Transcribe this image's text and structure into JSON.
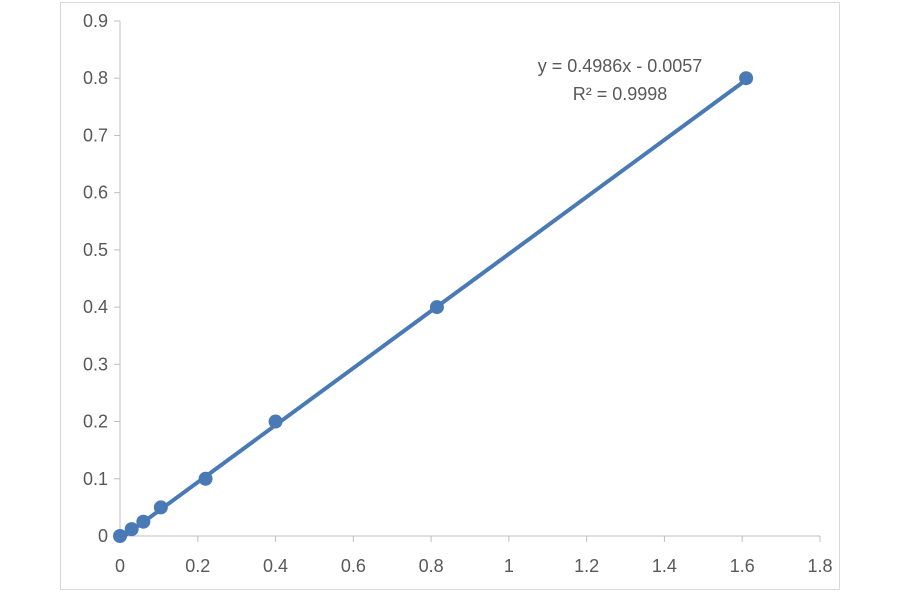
{
  "chart_data": {
    "type": "scatter",
    "series": [
      {
        "x": [
          0,
          0.03,
          0.06,
          0.105,
          0.22,
          0.4,
          0.815,
          1.61
        ],
        "y": [
          0,
          0.012,
          0.025,
          0.05,
          0.1,
          0.2,
          0.4,
          0.8
        ]
      }
    ],
    "trendline": {
      "type": "linear",
      "slope": 0.4986,
      "intercept": -0.0057,
      "x_range": [
        0,
        1.61
      ],
      "equation_label": "y = 0.4986x - 0.0057",
      "r2_label": "R² = 0.9998"
    },
    "xlim": [
      0,
      1.8
    ],
    "ylim": [
      0,
      0.9
    ],
    "x_ticks": [
      "0",
      "0.2",
      "0.4",
      "0.6",
      "0.8",
      "1",
      "1.2",
      "1.4",
      "1.6",
      "1.8"
    ],
    "y_ticks": [
      "0",
      "0.1",
      "0.2",
      "0.3",
      "0.4",
      "0.5",
      "0.6",
      "0.7",
      "0.8",
      "0.9"
    ],
    "grid": false,
    "colors": {
      "series": "#4a7ab5",
      "axis": "#bfbfbf",
      "text": "#595959"
    }
  }
}
